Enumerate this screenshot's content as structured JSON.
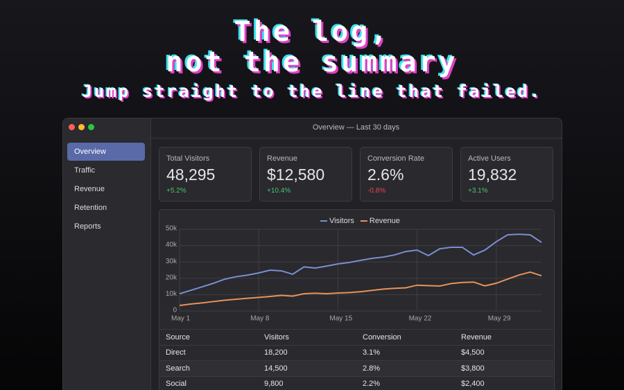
{
  "header": {
    "title_lines": [
      "The log,",
      "not the summary"
    ],
    "subtitle": "Jump straight to the line that failed."
  },
  "window": {
    "title": "Overview — Last 30 days"
  },
  "sidebar": {
    "items": [
      "Overview",
      "Traffic",
      "Revenue",
      "Retention",
      "Reports"
    ],
    "active": 0
  },
  "cards": [
    {
      "label": "Total Visitors",
      "value": "48,295",
      "delta": "+5.2%",
      "color": "#4cc36b"
    },
    {
      "label": "Revenue",
      "value": "$12,580",
      "delta": "+10.4%",
      "color": "#4cc36b"
    },
    {
      "label": "Conversion Rate",
      "value": "2.6%",
      "delta": "-0.8%",
      "color": "#e5484d"
    },
    {
      "label": "Active Users",
      "value": "19,832",
      "delta": "+3.1%",
      "color": "#4cc36b"
    }
  ],
  "chart_data": {
    "type": "line",
    "categories": [
      "May 1",
      null,
      null,
      null,
      null,
      null,
      null,
      "May 8",
      null,
      null,
      null,
      null,
      null,
      null,
      "May 15",
      null,
      null,
      null,
      null,
      null,
      null,
      "May 22",
      null,
      null,
      null,
      null,
      null,
      null,
      "May 29",
      null,
      null,
      null,
      null
    ],
    "series": [
      {
        "name": "Visitors",
        "color": "#7b8fd0",
        "values": [
          10600,
          12700,
          14800,
          17000,
          19500,
          21000,
          22000,
          23300,
          25000,
          24600,
          22500,
          27000,
          26300,
          27500,
          28800,
          29700,
          31000,
          32200,
          33000,
          34300,
          36400,
          37300,
          33900,
          38100,
          39000,
          39000,
          34300,
          37300,
          42400,
          46600,
          47000,
          46600,
          42000
        ]
      },
      {
        "name": "Revenue",
        "color": "#e8935a",
        "values": [
          3400,
          4300,
          5000,
          5800,
          6600,
          7200,
          7800,
          8300,
          8900,
          9600,
          9100,
          10600,
          10900,
          10600,
          11000,
          11300,
          11800,
          12600,
          13400,
          13900,
          14200,
          15800,
          15500,
          15300,
          16800,
          17500,
          17700,
          15400,
          17000,
          19500,
          22000,
          23800,
          21600
        ]
      }
    ],
    "ylim": [
      0,
      50000
    ],
    "yticks": [
      0,
      {
        "value": 10000,
        "label": "10k"
      },
      {
        "value": 20000,
        "label": "20k"
      },
      {
        "value": 30000,
        "label": "30k"
      },
      {
        "value": 40000,
        "label": "40k"
      },
      {
        "value": 50000,
        "label": "50k"
      }
    ],
    "grid": true,
    "legend": "top"
  },
  "table": {
    "columns": [
      "Source",
      "Visitors",
      "Conversion",
      "Revenue"
    ],
    "rows": [
      [
        "Direct",
        "18,200",
        "3.1%",
        "$4,500"
      ],
      [
        "Search",
        "14,500",
        "2.8%",
        "$3,800"
      ],
      [
        "Social",
        "9,800",
        "2.2%",
        "$2,400"
      ]
    ]
  }
}
